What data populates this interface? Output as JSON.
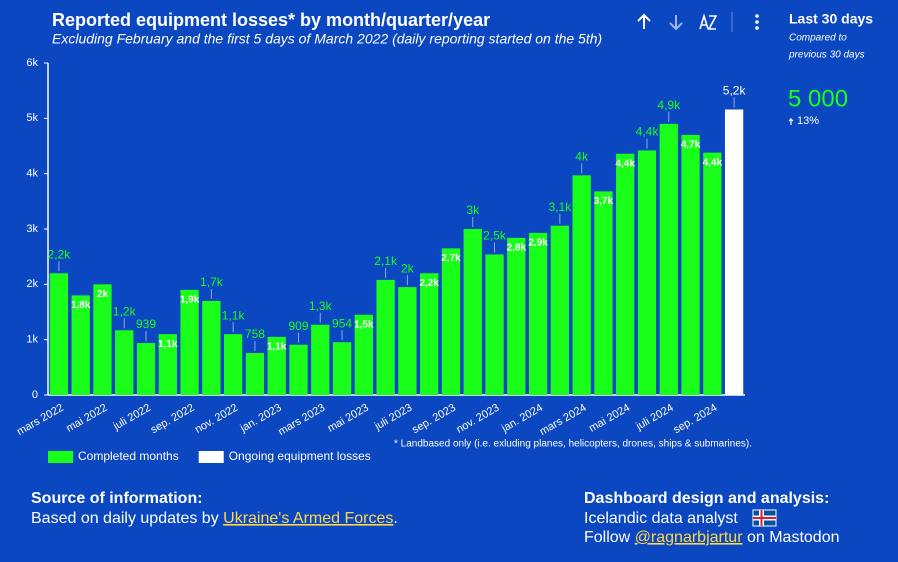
{
  "chart_data": {
    "type": "bar",
    "title": "Reported equipment losses* by month/quarter/year",
    "subtitle": "Excluding February and the first 5 days of March 2022 (daily reporting started on the 5th)",
    "footnote": "* Landbased only (i.e. exluding planes, helicopters, drones, ships & submarines).",
    "categories": [
      "mars 2022",
      null,
      "mai 2022",
      null,
      "juli 2022",
      null,
      "sep. 2022",
      null,
      "nov. 2022",
      null,
      "jan. 2023",
      null,
      "mars 2023",
      null,
      "mai 2023",
      null,
      "juli 2023",
      null,
      "sep. 2023",
      null,
      "nov. 2023",
      null,
      "jan. 2024",
      null,
      "mars 2024",
      null,
      "mai 2024",
      null,
      "juli 2024",
      null,
      "sep. 2024",
      null
    ],
    "series": [
      {
        "name": "Completed months",
        "color": "#1aff1a",
        "values": [
          2200,
          1800,
          2000,
          1170,
          939,
          1100,
          1900,
          1700,
          1100,
          758,
          1050,
          909,
          1270,
          954,
          1450,
          2080,
          1950,
          2200,
          2650,
          3000,
          2540,
          2840,
          2930,
          3060,
          3970,
          3680,
          4360,
          4420,
          4900,
          4700,
          4380,
          null
        ],
        "value_labels": [
          "2,2k",
          "1,8k",
          "2k",
          "1,2k",
          "939",
          "1,1k",
          "1,9k",
          "1,7k",
          "1,1k",
          "758",
          "1,1k",
          "909",
          "1,3k",
          "954",
          "1,5k",
          "2,1k",
          "2k",
          "2,2k",
          "2,7k",
          "3k",
          "2,5k",
          "2,8k",
          "2,9k",
          "3,1k",
          "4k",
          "3,7k",
          "4,4k",
          "4,4k",
          "4,9k",
          "4,7k",
          "4,4k",
          null
        ]
      },
      {
        "name": "Ongoing equipment losses",
        "color": "#ffffff",
        "values": [
          null,
          null,
          null,
          null,
          null,
          null,
          null,
          null,
          null,
          null,
          null,
          null,
          null,
          null,
          null,
          null,
          null,
          null,
          null,
          null,
          null,
          null,
          null,
          null,
          null,
          null,
          null,
          null,
          null,
          null,
          null,
          5160
        ],
        "value_labels": [
          null,
          null,
          null,
          null,
          null,
          null,
          null,
          null,
          null,
          null,
          null,
          null,
          null,
          null,
          null,
          null,
          null,
          null,
          null,
          null,
          null,
          null,
          null,
          null,
          null,
          null,
          null,
          null,
          null,
          null,
          null,
          "5,2k"
        ]
      }
    ],
    "ylim": [
      0,
      6000
    ],
    "yticks": [
      0,
      {
        "value": 1000,
        "label": "1k"
      },
      {
        "value": 2000,
        "label": "2k"
      },
      {
        "value": 3000,
        "label": "3k"
      },
      {
        "value": 4000,
        "label": "4k"
      },
      {
        "value": 5000,
        "label": "5k"
      },
      {
        "value": 6000,
        "label": "6k"
      }
    ],
    "grid": false,
    "legend": "bottom-left"
  },
  "kpi": {
    "title": "Last 30 days",
    "compare": [
      "Compared to",
      "previous 30 days"
    ],
    "value": "5 000",
    "change": "13%"
  },
  "footer": {
    "source_title": "Source of information:",
    "source_text": "Based on daily updates by ",
    "source_link": "Ukraine's Armed Forces",
    "source_end": ".",
    "design_title": "Dashboard design and analysis:",
    "design_text": "Icelandic data analyst",
    "follow_text": "Follow ",
    "follow_link": "@ragnarbjartur",
    "follow_end": " on Mastodon"
  }
}
